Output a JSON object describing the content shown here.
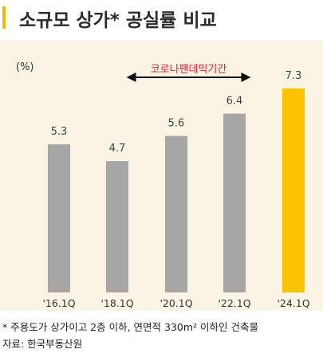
{
  "title": "소규모 상가* 공실률 비교",
  "unit": "(%)",
  "annotation": "코로나팬데믹기간",
  "footnote": "* 주용도가 상가이고 2층 이하, 연면적 330m² 이하인 건축물",
  "source": "자료: 한국부동산원",
  "colors": {
    "bar_default": "#a6a6a6",
    "bar_highlight": "#fcc300",
    "annotation": "#e8202a",
    "title_accent": "#f5b800",
    "panel_bg": "#fbf3e4"
  },
  "chart_data": {
    "type": "bar",
    "categories": [
      "'16.1Q",
      "'18.1Q",
      "'20.1Q",
      "'22.1Q",
      "'24.1Q"
    ],
    "values": [
      5.3,
      4.7,
      5.6,
      6.4,
      7.3
    ],
    "value_labels": [
      "5.3",
      "4.7",
      "5.6",
      "6.4",
      "7.3"
    ],
    "highlight_index": 4,
    "ylim": [
      0,
      7.3
    ],
    "grid": false,
    "annotation_range": [
      "'20.1Q",
      "'22.1Q"
    ]
  }
}
